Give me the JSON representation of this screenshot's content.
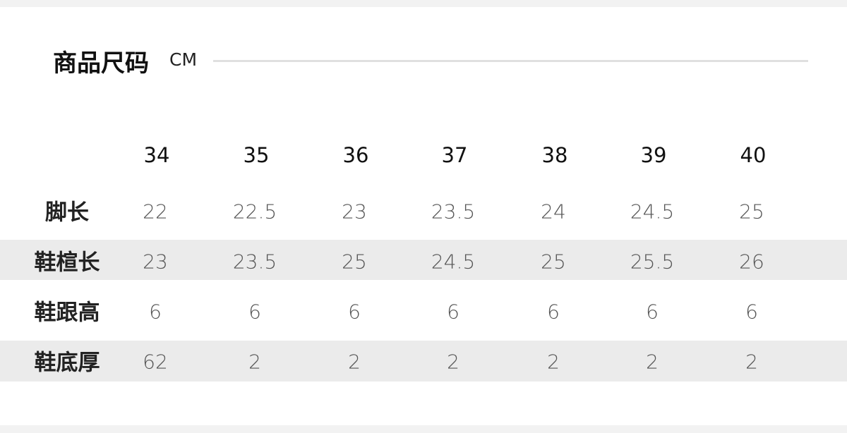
{
  "header": {
    "title": "商品尺码",
    "unit": "CM"
  },
  "table": {
    "columns": [
      "34",
      "35",
      "36",
      "37",
      "38",
      "39",
      "40"
    ],
    "rows": [
      {
        "label": "脚长",
        "values": [
          "22",
          "22.5",
          "23",
          "23.5",
          "24",
          "24.5",
          "25"
        ]
      },
      {
        "label": "鞋楦长",
        "values": [
          "23",
          "23.5",
          "25",
          "24.5",
          "25",
          "25.5",
          "26"
        ]
      },
      {
        "label": "鞋跟高",
        "values": [
          "6",
          "6",
          "6",
          "6",
          "6",
          "6",
          "6"
        ]
      },
      {
        "label": "鞋底厚",
        "values": [
          "62",
          "2",
          "2",
          "2",
          "2",
          "2",
          "2"
        ]
      }
    ]
  }
}
